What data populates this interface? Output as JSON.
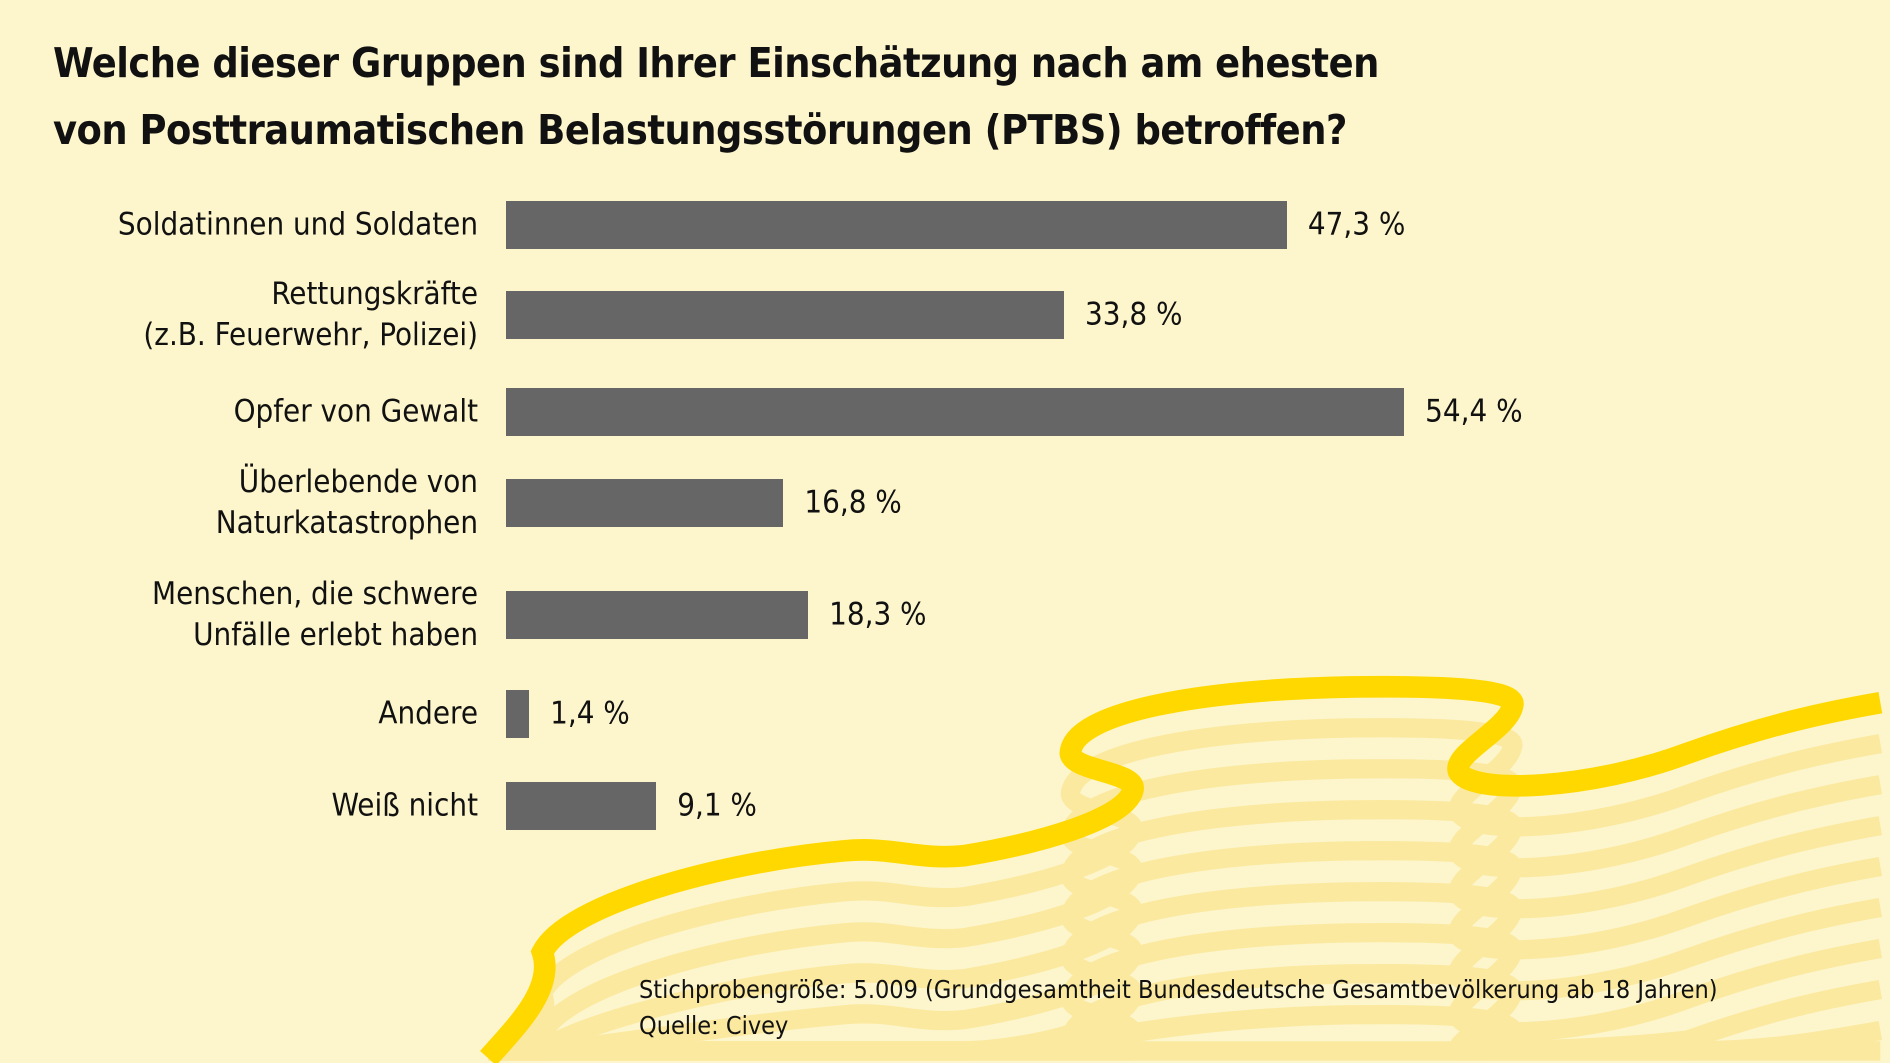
{
  "colors": {
    "background": "#fdf6cc",
    "bar": "#666666",
    "ribbon": "#ffd800",
    "stripe": "#fbe9a0"
  },
  "chart_data": {
    "type": "bar",
    "orientation": "horizontal",
    "title_lines": [
      "Welche dieser Gruppen sind Ihrer Einschätzung nach am ehesten",
      "von Posttraumatischen Belastungsstörungen (PTBS) betroffen?"
    ],
    "categories": [
      "Soldatinnen und Soldaten",
      "Rettungskräfte\n(z.B. Feuerwehr, Polizei)",
      "Opfer von Gewalt",
      "Überlebende von\nNaturkatastrophen",
      "Menschen, die schwere\nUnfälle erlebt haben",
      "Andere",
      "Weiß nicht"
    ],
    "values": [
      47.3,
      33.8,
      54.4,
      16.8,
      18.3,
      1.4,
      9.1
    ],
    "data_labels": [
      "47,3 %",
      "33,8 %",
      "54,4 %",
      "16,8 %",
      "18,3 %",
      "1,4 %",
      "9,1 %"
    ],
    "unit": "%",
    "grid": false,
    "xlabel": "",
    "ylabel": ""
  },
  "footer": {
    "sample": "Stichprobengröße: 5.009 (Grundgesamtheit Bundesdeutsche Gesamtbevölkerung ab 18 Jahren)",
    "source": "Quelle: Civey"
  }
}
